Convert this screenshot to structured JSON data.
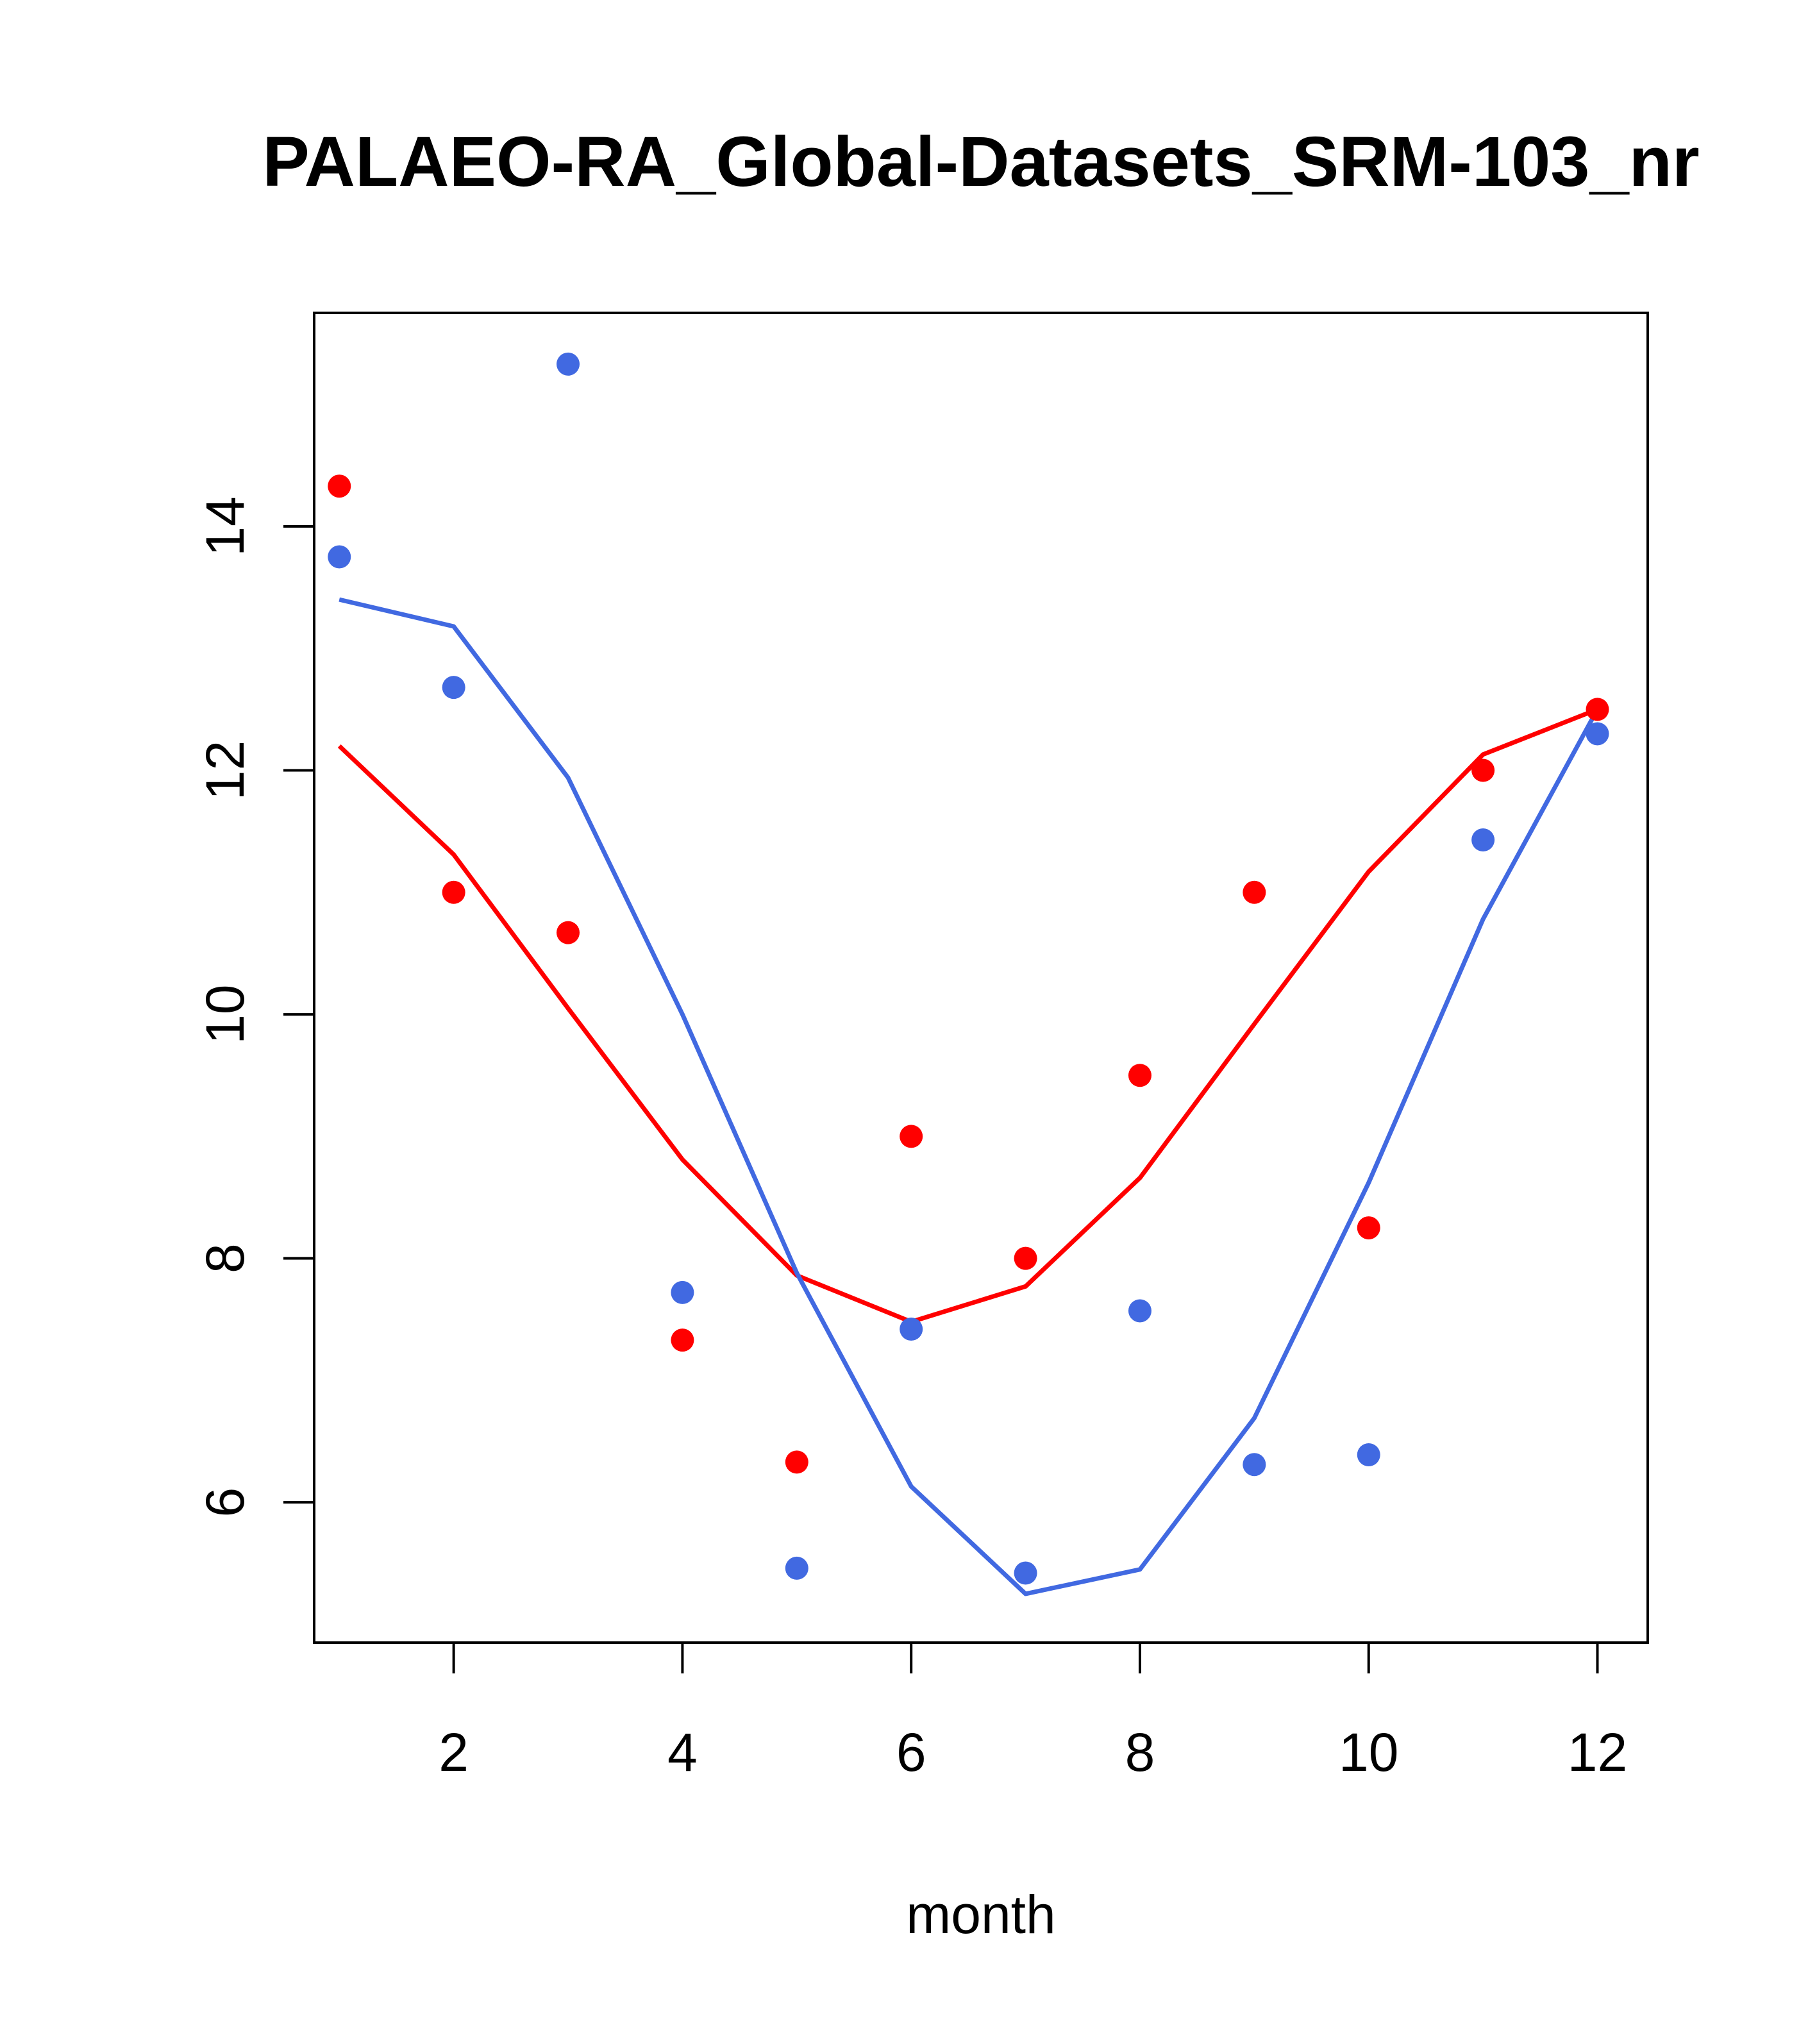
{
  "chart_data": {
    "type": "scatter",
    "title": "PALAEO-RA_Global-Datasets_SRM-103_nr",
    "xlabel": "month",
    "ylabel": "",
    "xlim": [
      0.78,
      12.44
    ],
    "ylim": [
      4.85,
      15.75
    ],
    "xticks": [
      2,
      4,
      6,
      8,
      10,
      12
    ],
    "xtick_labels": [
      "2",
      "4",
      "6",
      "8",
      "10",
      "12"
    ],
    "yticks": [
      6,
      8,
      10,
      12,
      14
    ],
    "ytick_labels": [
      "6",
      "8",
      "10",
      "12",
      "14"
    ],
    "grid": false,
    "x": [
      1,
      2,
      3,
      4,
      5,
      6,
      7,
      8,
      9,
      10,
      11,
      12
    ],
    "series": [
      {
        "name": "red points",
        "kind": "points",
        "color": "#ff0000",
        "values": [
          14.33,
          11.0,
          10.67,
          7.33,
          6.33,
          9.0,
          8.0,
          9.5,
          11.0,
          8.25,
          12.0,
          12.5
        ]
      },
      {
        "name": "blue points",
        "kind": "points",
        "color": "#4169e1",
        "values": [
          13.75,
          12.68,
          15.33,
          7.72,
          5.46,
          7.42,
          5.42,
          7.57,
          6.31,
          6.39,
          11.43,
          12.3
        ]
      },
      {
        "name": "red line",
        "kind": "line",
        "color": "#ff0000",
        "values": [
          12.2,
          11.31,
          10.05,
          8.81,
          7.86,
          7.48,
          7.77,
          8.66,
          9.92,
          11.17,
          12.13,
          12.5
        ]
      },
      {
        "name": "blue line",
        "kind": "line",
        "color": "#4169e1",
        "values": [
          13.4,
          13.18,
          11.94,
          10.0,
          7.88,
          6.13,
          5.25,
          5.45,
          6.69,
          8.62,
          10.78,
          12.5
        ]
      }
    ]
  }
}
